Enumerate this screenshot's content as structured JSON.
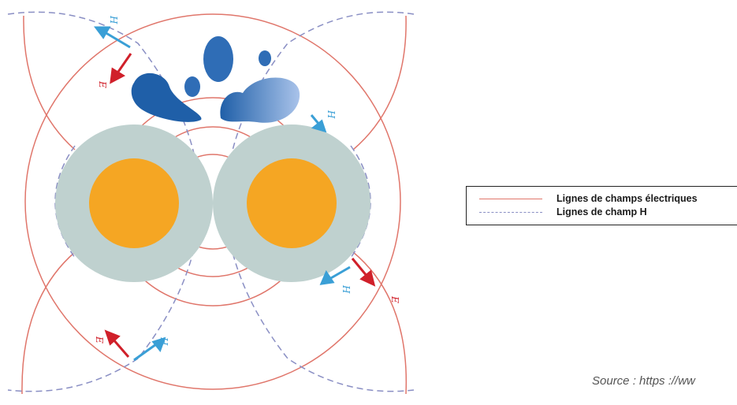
{
  "legend": {
    "electric_label": "Lignes de champs électriques",
    "h_label": "Lignes de champ H"
  },
  "source": "Source : https ://ww",
  "field_labels": {
    "e": "E",
    "h": "H"
  },
  "colors": {
    "electric_line": "#e0766b",
    "h_line": "#8a8fc4",
    "e_arrow": "#d0202a",
    "h_arrow": "#3a9fd6",
    "insulation": "#bfd1cf",
    "conductor": "#f5a623",
    "water": "#1f5fa8"
  },
  "icons": [
    "water-drops-icon"
  ]
}
